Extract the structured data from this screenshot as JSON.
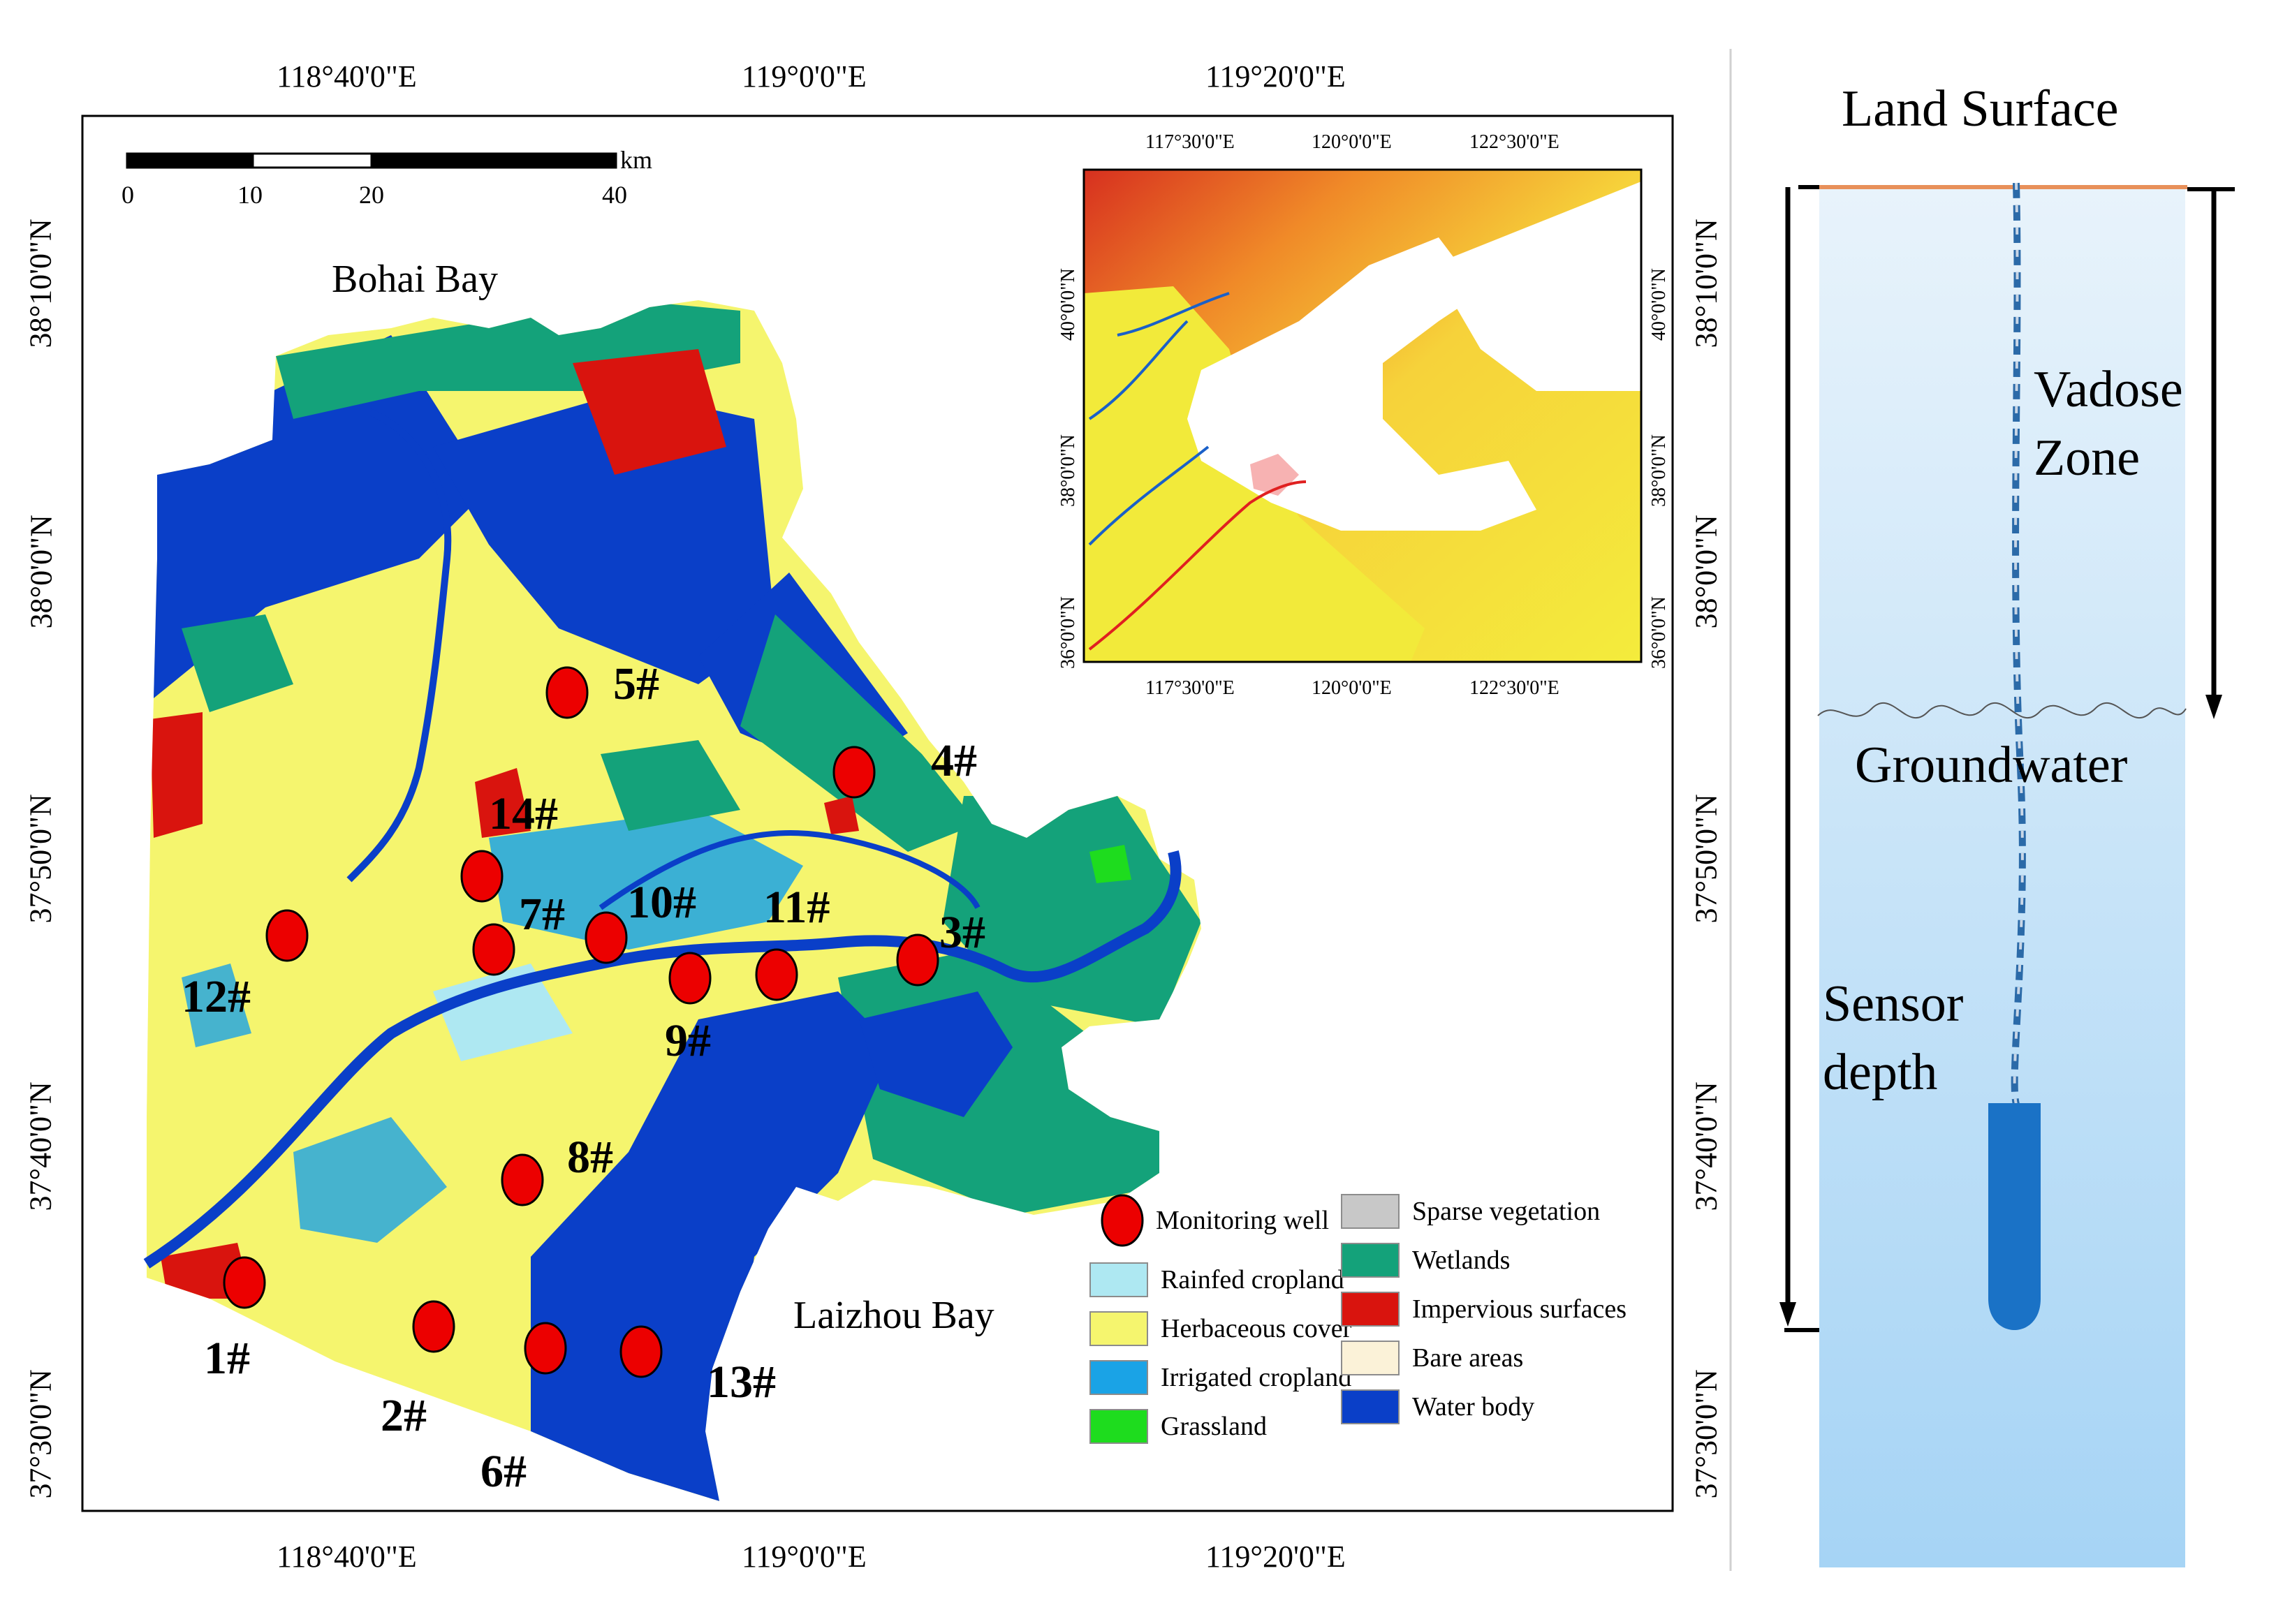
{
  "map": {
    "top_lon_ticks": [
      "118°40'0\"E",
      "119°0'0\"E",
      "119°20'0\"E"
    ],
    "bottom_lon_ticks": [
      "118°40'0\"E",
      "119°0'0\"E",
      "119°20'0\"E"
    ],
    "left_lat_ticks": [
      "38°10'0\"N",
      "38°0'0\"N",
      "37°50'0\"N",
      "37°40'0\"N",
      "37°30'0\"N"
    ],
    "right_lat_ticks": [
      "38°10'0\"N",
      "38°0'0\"N",
      "37°50'0\"N",
      "37°40'0\"N",
      "37°30'0\"N"
    ],
    "scale_bar": {
      "ticks": [
        "0",
        "10",
        "20",
        "40"
      ],
      "unit": "km"
    },
    "places": {
      "bohai": "Bohai Bay",
      "laizhou": "Laizhou Bay"
    },
    "wells": [
      "1#",
      "2#",
      "3#",
      "4#",
      "5#",
      "6#",
      "7#",
      "8#",
      "9#",
      "10#",
      "11#",
      "12#",
      "13#",
      "14#"
    ],
    "colors": {
      "rainfed_cropland": "#aee8f2",
      "herbaceous_cover": "#f5f56e",
      "irrigated_cropland": "#1aa3e6",
      "grassland": "#1edc1e",
      "sparse_vegetation": "#c8c8c8",
      "wetlands": "#14a27a",
      "impervious_surfaces": "#d9140e",
      "bare_areas": "#fbf2d8",
      "water_body": "#0a3fc8",
      "well": "#ec0000"
    }
  },
  "inset": {
    "top_ticks": [
      "117°30'0\"E",
      "120°0'0\"E",
      "122°30'0\"E"
    ],
    "bottom_ticks": [
      "117°30'0\"E",
      "120°0'0\"E",
      "122°30'0\"E"
    ],
    "left_ticks": [
      "40°0'0\"N",
      "38°0'0\"N",
      "36°0'0\"N"
    ],
    "right_ticks": [
      "40°0'0\"N",
      "38°0'0\"N",
      "36°0'0\"N"
    ]
  },
  "legend": {
    "well": "Monitoring well",
    "left": [
      "Rainfed cropland",
      "Herbaceous cover",
      "Irrigated cropland",
      "Grassland"
    ],
    "right": [
      "Sparse vegetation",
      "Wetlands",
      "Impervious surfaces",
      "Bare areas",
      "Water body"
    ]
  },
  "diagram": {
    "land_surface": "Land Surface",
    "vadose_line1": "Vadose",
    "vadose_line2": "Zone",
    "groundwater": "Groundwater",
    "sensor_line1": "Sensor",
    "sensor_line2": "depth",
    "colors": {
      "column_top": "#e6f2fb",
      "column_bottom": "#a9d6f6",
      "sensor": "#1a72c6",
      "surface": "#e8905a"
    }
  }
}
